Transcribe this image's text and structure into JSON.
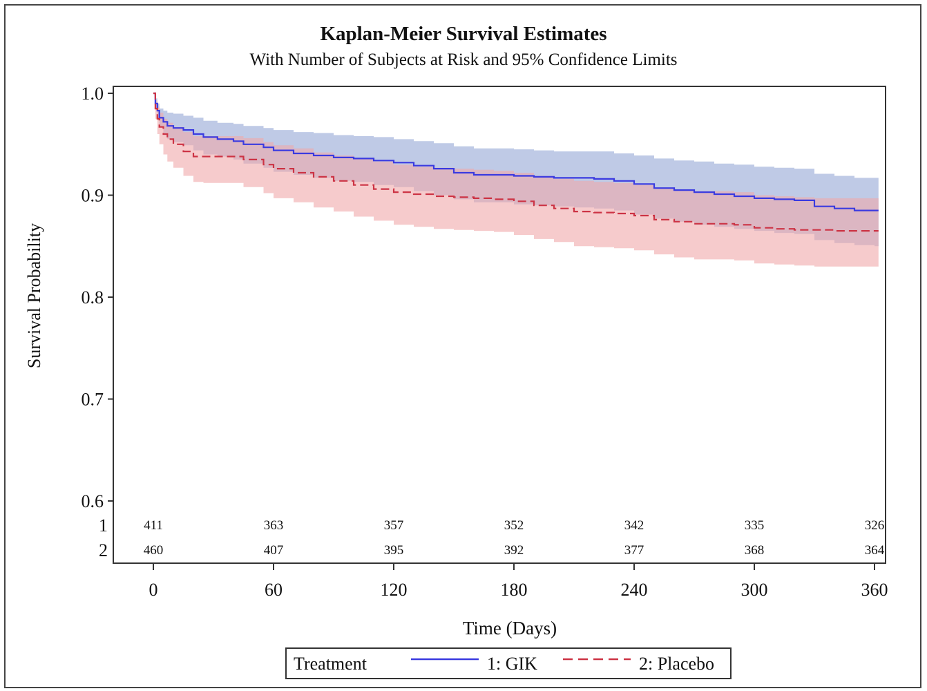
{
  "chart_data": {
    "type": "line",
    "title": "Kaplan-Meier Survival Estimates",
    "subtitle": "With Number of Subjects at Risk and 95% Confidence Limits",
    "xlabel": "Time (Days)",
    "ylabel": "Survival Probability",
    "xlim": [
      -20,
      362
    ],
    "ylim": [
      0.6,
      1.0
    ],
    "x_ticks": [
      "0",
      "60",
      "120",
      "180",
      "240",
      "300",
      "360"
    ],
    "y_ticks": [
      "0.6",
      "0.7",
      "0.8",
      "0.9",
      "1.0"
    ],
    "grid": false,
    "legend_title": "Treatment",
    "legend_position": "bottom",
    "series": [
      {
        "name": "1: GIK",
        "color": "#3a3ae0",
        "line_style": "solid",
        "band_color": "#aab8dd",
        "x": [
          0,
          1,
          2,
          3,
          5,
          7,
          10,
          15,
          20,
          25,
          32,
          40,
          45,
          55,
          60,
          70,
          80,
          90,
          100,
          110,
          120,
          130,
          140,
          150,
          160,
          170,
          180,
          190,
          200,
          210,
          220,
          230,
          240,
          250,
          260,
          270,
          280,
          290,
          300,
          310,
          320,
          330,
          340,
          350,
          360
        ],
        "y": [
          1.0,
          0.99,
          0.983,
          0.976,
          0.972,
          0.968,
          0.966,
          0.964,
          0.96,
          0.957,
          0.955,
          0.953,
          0.95,
          0.947,
          0.944,
          0.941,
          0.939,
          0.937,
          0.936,
          0.934,
          0.932,
          0.929,
          0.926,
          0.922,
          0.92,
          0.92,
          0.919,
          0.918,
          0.917,
          0.917,
          0.916,
          0.914,
          0.911,
          0.907,
          0.905,
          0.903,
          0.901,
          0.899,
          0.897,
          0.896,
          0.895,
          0.889,
          0.887,
          0.885,
          0.885
        ],
        "ci_lower": [
          1.0,
          0.985,
          0.975,
          0.967,
          0.961,
          0.955,
          0.952,
          0.949,
          0.944,
          0.94,
          0.938,
          0.935,
          0.931,
          0.927,
          0.923,
          0.92,
          0.917,
          0.914,
          0.913,
          0.91,
          0.908,
          0.904,
          0.9,
          0.896,
          0.893,
          0.893,
          0.891,
          0.89,
          0.889,
          0.888,
          0.887,
          0.885,
          0.881,
          0.877,
          0.874,
          0.871,
          0.869,
          0.867,
          0.865,
          0.863,
          0.862,
          0.856,
          0.853,
          0.851,
          0.85
        ],
        "ci_upper": [
          1.0,
          0.995,
          0.99,
          0.985,
          0.983,
          0.981,
          0.98,
          0.978,
          0.976,
          0.973,
          0.971,
          0.97,
          0.968,
          0.966,
          0.964,
          0.962,
          0.961,
          0.959,
          0.958,
          0.957,
          0.955,
          0.953,
          0.951,
          0.948,
          0.946,
          0.946,
          0.945,
          0.944,
          0.943,
          0.943,
          0.943,
          0.941,
          0.939,
          0.936,
          0.934,
          0.933,
          0.931,
          0.93,
          0.928,
          0.927,
          0.926,
          0.921,
          0.919,
          0.917,
          0.917
        ],
        "at_risk": [
          411,
          363,
          357,
          352,
          342,
          335,
          326
        ]
      },
      {
        "name": "2: Placebo",
        "color": "#cc3344",
        "line_style": "dashed",
        "band_color": "#f0a8aa",
        "x": [
          0,
          1,
          2,
          3,
          5,
          7,
          10,
          15,
          20,
          25,
          32,
          40,
          45,
          55,
          60,
          70,
          80,
          90,
          100,
          110,
          120,
          130,
          140,
          150,
          160,
          170,
          180,
          190,
          200,
          210,
          220,
          230,
          240,
          250,
          260,
          270,
          280,
          290,
          300,
          310,
          320,
          330,
          340,
          350,
          360
        ],
        "y": [
          1.0,
          0.985,
          0.975,
          0.967,
          0.96,
          0.955,
          0.95,
          0.943,
          0.938,
          0.938,
          0.938,
          0.938,
          0.935,
          0.93,
          0.926,
          0.922,
          0.918,
          0.914,
          0.91,
          0.906,
          0.903,
          0.901,
          0.899,
          0.898,
          0.897,
          0.896,
          0.894,
          0.89,
          0.887,
          0.884,
          0.883,
          0.882,
          0.88,
          0.876,
          0.874,
          0.872,
          0.872,
          0.871,
          0.868,
          0.867,
          0.866,
          0.866,
          0.865,
          0.865,
          0.865
        ],
        "ci_lower": [
          1.0,
          0.975,
          0.96,
          0.95,
          0.94,
          0.933,
          0.927,
          0.919,
          0.913,
          0.912,
          0.912,
          0.912,
          0.908,
          0.902,
          0.897,
          0.893,
          0.888,
          0.884,
          0.879,
          0.875,
          0.871,
          0.869,
          0.867,
          0.866,
          0.865,
          0.864,
          0.861,
          0.857,
          0.854,
          0.85,
          0.849,
          0.848,
          0.846,
          0.842,
          0.839,
          0.837,
          0.837,
          0.836,
          0.833,
          0.832,
          0.831,
          0.83,
          0.83,
          0.83,
          0.83
        ],
        "ci_upper": [
          1.0,
          0.993,
          0.987,
          0.981,
          0.975,
          0.971,
          0.967,
          0.962,
          0.958,
          0.958,
          0.958,
          0.958,
          0.956,
          0.952,
          0.949,
          0.946,
          0.942,
          0.939,
          0.936,
          0.933,
          0.93,
          0.928,
          0.927,
          0.926,
          0.925,
          0.924,
          0.922,
          0.919,
          0.916,
          0.914,
          0.913,
          0.912,
          0.91,
          0.907,
          0.905,
          0.904,
          0.904,
          0.903,
          0.9,
          0.899,
          0.898,
          0.897,
          0.897,
          0.897,
          0.897
        ],
        "at_risk": [
          460,
          407,
          395,
          392,
          377,
          368,
          364
        ]
      }
    ],
    "at_risk_rows": [
      "1",
      "2"
    ],
    "at_risk_times": [
      0,
      60,
      120,
      180,
      240,
      300,
      360
    ]
  }
}
